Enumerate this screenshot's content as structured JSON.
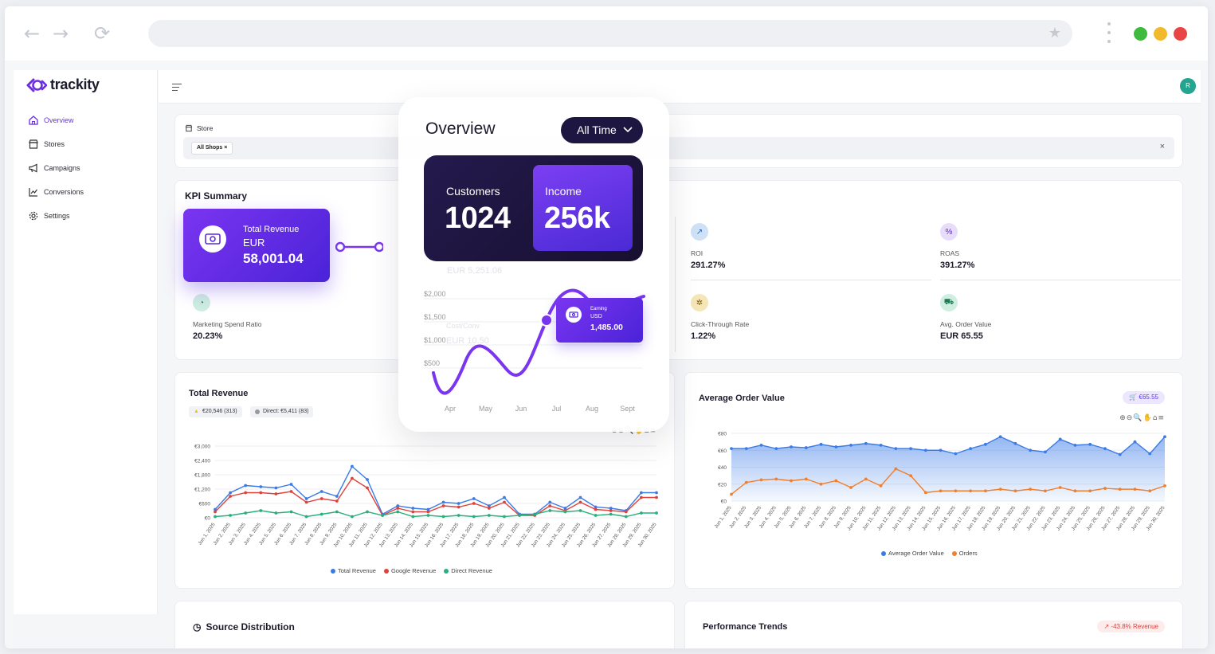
{
  "browser": {
    "url": ""
  },
  "app": {
    "logo": "trackity",
    "nav": [
      {
        "label": "Overview",
        "icon": "home-icon"
      },
      {
        "label": "Stores",
        "icon": "store-icon"
      },
      {
        "label": "Campaigns",
        "icon": "megaphone-icon"
      },
      {
        "label": "Conversions",
        "icon": "chart-line-icon"
      },
      {
        "label": "Settings",
        "icon": "gear-icon"
      }
    ],
    "avatar": "R"
  },
  "store_filter": {
    "label": "Store",
    "chip": "All Shops ×",
    "clear": "×"
  },
  "kpi": {
    "title": "KPI Summary",
    "items": [
      {
        "label": "ROI",
        "value": "291.27%",
        "icon": "trend-up-icon"
      },
      {
        "label": "ROAS",
        "value": "391.27%",
        "icon": "percent-icon"
      },
      {
        "label": "Marketing Spend Ratio",
        "value": "20.23%",
        "icon": "pie-icon"
      },
      {
        "label": "Click-Through Rate",
        "value": "1.22%",
        "icon": "click-icon"
      },
      {
        "label": "Avg. Order Value",
        "value": "EUR 65.55",
        "icon": "cart-icon"
      }
    ]
  },
  "revenue_card": {
    "title": "Total Revenue",
    "currency": "EUR",
    "value": "58,001.04"
  },
  "overview": {
    "title": "Overview",
    "range": "All Time",
    "customers_label": "Customers",
    "customers_value": "1024",
    "income_label": "Income",
    "income_value": "256k",
    "earning_label": "Earning",
    "earning_currency": "USD",
    "earning_value": "1,485.00",
    "y_ticks": [
      "$2,000",
      "$1,500",
      "$1,000",
      "$500"
    ],
    "x_ticks": [
      "Apr",
      "May",
      "Jun",
      "Jul",
      "Aug",
      "Sept"
    ],
    "ghost_1": "EUR 5,251.06",
    "ghost_2": "Cost/Conv",
    "ghost_3": "EUR 10.50"
  },
  "total_revenue_chart": {
    "title": "Total Revenue",
    "chips": [
      "€20,546 (313)",
      "Direct: €5,411 (83)"
    ],
    "y_ticks": [
      "€3,000",
      "€2,400",
      "€1,800",
      "€1,200",
      "€600",
      "€0"
    ],
    "legend": [
      "Total Revenue",
      "Google Revenue",
      "Direct Revenue"
    ],
    "toolbar": "⊕⊖🔍✋⌂≡"
  },
  "aov_chart": {
    "title": "Average Order Value",
    "badge": "€65.55",
    "y_ticks": [
      "€80",
      "€60",
      "€40",
      "€20",
      "€0"
    ],
    "legend": [
      "Average Order Value",
      "Orders"
    ],
    "toolbar": "⊕⊖🔍✋⌂≡"
  },
  "source_distribution": {
    "title": "Source Distribution"
  },
  "performance_trends": {
    "title": "Performance Trends",
    "badge": "-43.8% Revenue"
  },
  "chart_data": [
    {
      "type": "line",
      "title": "Total Revenue",
      "x": [
        "Jun 1, 2025",
        "Jun 2, 2025",
        "Jun 3, 2025",
        "Jun 4, 2025",
        "Jun 5, 2025",
        "Jun 6, 2025",
        "Jun 7, 2025",
        "Jun 8, 2025",
        "Jun 9, 2025",
        "Jun 10, 2025",
        "Jun 11, 2025",
        "Jun 12, 2025",
        "Jun 13, 2025",
        "Jun 14, 2025",
        "Jun 15, 2025",
        "Jun 16, 2025",
        "Jun 17, 2025",
        "Jun 18, 2025",
        "Jun 19, 2025",
        "Jun 20, 2025",
        "Jun 21, 2025",
        "Jun 22, 2025",
        "Jun 23, 2025",
        "Jun 24, 2025",
        "Jun 25, 2025",
        "Jun 26, 2025",
        "Jun 27, 2025",
        "Jun 28, 2025",
        "Jun 29, 2025",
        "Jun 30, 2025"
      ],
      "ylim": [
        0,
        3000
      ],
      "series": [
        {
          "name": "Total Revenue",
          "color": "#3b7be8",
          "values": [
            350,
            1050,
            1350,
            1300,
            1250,
            1400,
            800,
            1100,
            900,
            2150,
            1600,
            150,
            500,
            400,
            350,
            650,
            600,
            800,
            500,
            850,
            150,
            150,
            650,
            400,
            850,
            450,
            400,
            300,
            1050,
            1050
          ]
        },
        {
          "name": "Google Revenue",
          "color": "#e0413a",
          "values": [
            250,
            900,
            1050,
            1050,
            1000,
            1100,
            650,
            800,
            700,
            1650,
            1250,
            100,
            400,
            250,
            250,
            500,
            450,
            600,
            400,
            650,
            100,
            100,
            500,
            300,
            650,
            350,
            300,
            250,
            850,
            850
          ]
        },
        {
          "name": "Direct Revenue",
          "color": "#27b07a",
          "values": [
            50,
            100,
            200,
            300,
            200,
            250,
            50,
            150,
            250,
            50,
            250,
            100,
            250,
            50,
            100,
            50,
            100,
            50,
            100,
            50,
            100,
            150,
            300,
            250,
            300,
            100,
            150,
            50,
            200,
            200
          ]
        }
      ]
    },
    {
      "type": "area",
      "title": "Average Order Value",
      "x": [
        "Jun 1, 2025",
        "Jun 2, 2025",
        "Jun 3, 2025",
        "Jun 4, 2025",
        "Jun 5, 2025",
        "Jun 6, 2025",
        "Jun 7, 2025",
        "Jun 8, 2025",
        "Jun 9, 2025",
        "Jun 10, 2025",
        "Jun 11, 2025",
        "Jun 12, 2025",
        "Jun 13, 2025",
        "Jun 14, 2025",
        "Jun 15, 2025",
        "Jun 16, 2025",
        "Jun 17, 2025",
        "Jun 18, 2025",
        "Jun 19, 2025",
        "Jun 20, 2025",
        "Jun 21, 2025",
        "Jun 22, 2025",
        "Jun 23, 2025",
        "Jun 24, 2025",
        "Jun 25, 2025",
        "Jun 26, 2025",
        "Jun 27, 2025",
        "Jun 28, 2025",
        "Jun 29, 2025",
        "Jun 30, 2025"
      ],
      "ylim": [
        0,
        80
      ],
      "series": [
        {
          "name": "Average Order Value",
          "color": "#3b7be8",
          "values": [
            62,
            62,
            66,
            62,
            64,
            63,
            67,
            64,
            66,
            68,
            66,
            62,
            62,
            60,
            60,
            56,
            62,
            67,
            76,
            68,
            60,
            58,
            73,
            66,
            67,
            62,
            55,
            70,
            56,
            76
          ]
        },
        {
          "name": "Orders",
          "color": "#f07f2e",
          "values": [
            8,
            22,
            25,
            26,
            24,
            26,
            20,
            24,
            16,
            26,
            18,
            38,
            30,
            10,
            12,
            12,
            12,
            12,
            14,
            12,
            14,
            12,
            16,
            12,
            12,
            15,
            14,
            14,
            12,
            18
          ]
        }
      ]
    }
  ]
}
